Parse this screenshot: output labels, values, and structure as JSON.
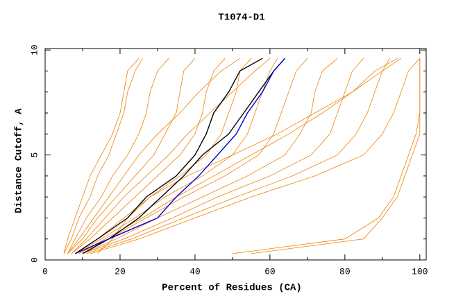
{
  "chart_data": {
    "type": "line",
    "title": "T1074-D1",
    "x_label": "Percent of Residues (CA)",
    "y_label": "Distance Cutoff, A",
    "xlim": [
      0,
      101.7
    ],
    "ylim": [
      0,
      10.07
    ],
    "xticks": [
      0,
      20,
      40,
      60,
      80,
      100
    ],
    "yticks": [
      0,
      5,
      10
    ],
    "xminorticks": [
      10,
      30,
      50,
      70,
      90
    ],
    "yminorticks": [
      1,
      2,
      3,
      4,
      6,
      7,
      8,
      9
    ],
    "y": [
      0.3,
      1,
      2,
      3,
      4,
      5,
      6,
      7,
      8,
      9,
      9.6
    ],
    "series": [
      {
        "color": "#f08000",
        "x": [
          5,
          6,
          8,
          10,
          12,
          15,
          18,
          20,
          21,
          22,
          25
        ]
      },
      {
        "color": "#f08000",
        "x": [
          5,
          7,
          9,
          12,
          14,
          17,
          19,
          21,
          22,
          24,
          26
        ]
      },
      {
        "color": "#f08000",
        "x": [
          6,
          8,
          11,
          15,
          18,
          22,
          25,
          27,
          28,
          30,
          33
        ]
      },
      {
        "color": "#f08000",
        "x": [
          6,
          10,
          14,
          19,
          24,
          29,
          32,
          35,
          36,
          37,
          40
        ]
      },
      {
        "color": "#f08000",
        "x": [
          7,
          12,
          18,
          24,
          30,
          36,
          40,
          42,
          43,
          45,
          48
        ]
      },
      {
        "color": "#f08000",
        "x": [
          8,
          14,
          21,
          28,
          36,
          43,
          47,
          49,
          51,
          52,
          55
        ]
      },
      {
        "color": "#f08000",
        "x": [
          8,
          15,
          24,
          32,
          42,
          50,
          54,
          56,
          58,
          60,
          62
        ]
      },
      {
        "color": "#f08000",
        "x": [
          9,
          17,
          27,
          37,
          48,
          57,
          61,
          63,
          65,
          67,
          70
        ]
      },
      {
        "color": "#f08000",
        "x": [
          10,
          19,
          30,
          42,
          54,
          64,
          68,
          71,
          72,
          74,
          78
        ]
      },
      {
        "color": "#f08000",
        "x": [
          10,
          21,
          34,
          46,
          60,
          71,
          76,
          78,
          80,
          82,
          85
        ]
      },
      {
        "color": "#f08000",
        "x": [
          11,
          23,
          37,
          51,
          66,
          78,
          83,
          86,
          88,
          90,
          92
        ]
      },
      {
        "color": "#f08000",
        "x": [
          12,
          25,
          40,
          55,
          72,
          85,
          90,
          93,
          95,
          97,
          100
        ]
      },
      {
        "color": "#f08000",
        "x": [
          14,
          18,
          22,
          28,
          38,
          50,
          62,
          72,
          82,
          90,
          95
        ]
      },
      {
        "color": "#f08000",
        "x": [
          7,
          11,
          16,
          21,
          27,
          33,
          38,
          44,
          50,
          56,
          60
        ]
      },
      {
        "color": "#f08000",
        "x": [
          9,
          16,
          26,
          35,
          45,
          55,
          65,
          74,
          82,
          88,
          94
        ]
      },
      {
        "color": "#f08000",
        "x": [
          6,
          9,
          13,
          17,
          21,
          25,
          30,
          36,
          41,
          47,
          52
        ]
      },
      {
        "color": "#f08000",
        "x": [
          50,
          80,
          89,
          93,
          95,
          97,
          99,
          100,
          100,
          100,
          100
        ]
      },
      {
        "color": "#f08000",
        "x": [
          55,
          85,
          90,
          94,
          96,
          98,
          100,
          100,
          100,
          100,
          100
        ]
      },
      {
        "color": "#000000",
        "x": [
          8,
          14,
          22,
          27,
          35,
          40,
          43,
          45,
          49,
          52,
          58
        ]
      },
      {
        "color": "#000000",
        "x": [
          10,
          17,
          25,
          31,
          37,
          42,
          49,
          53,
          57,
          61,
          64
        ]
      },
      {
        "color": "#0000cc",
        "x": [
          8,
          17,
          30,
          35,
          41,
          46,
          51,
          54,
          58,
          61,
          64
        ]
      }
    ]
  }
}
